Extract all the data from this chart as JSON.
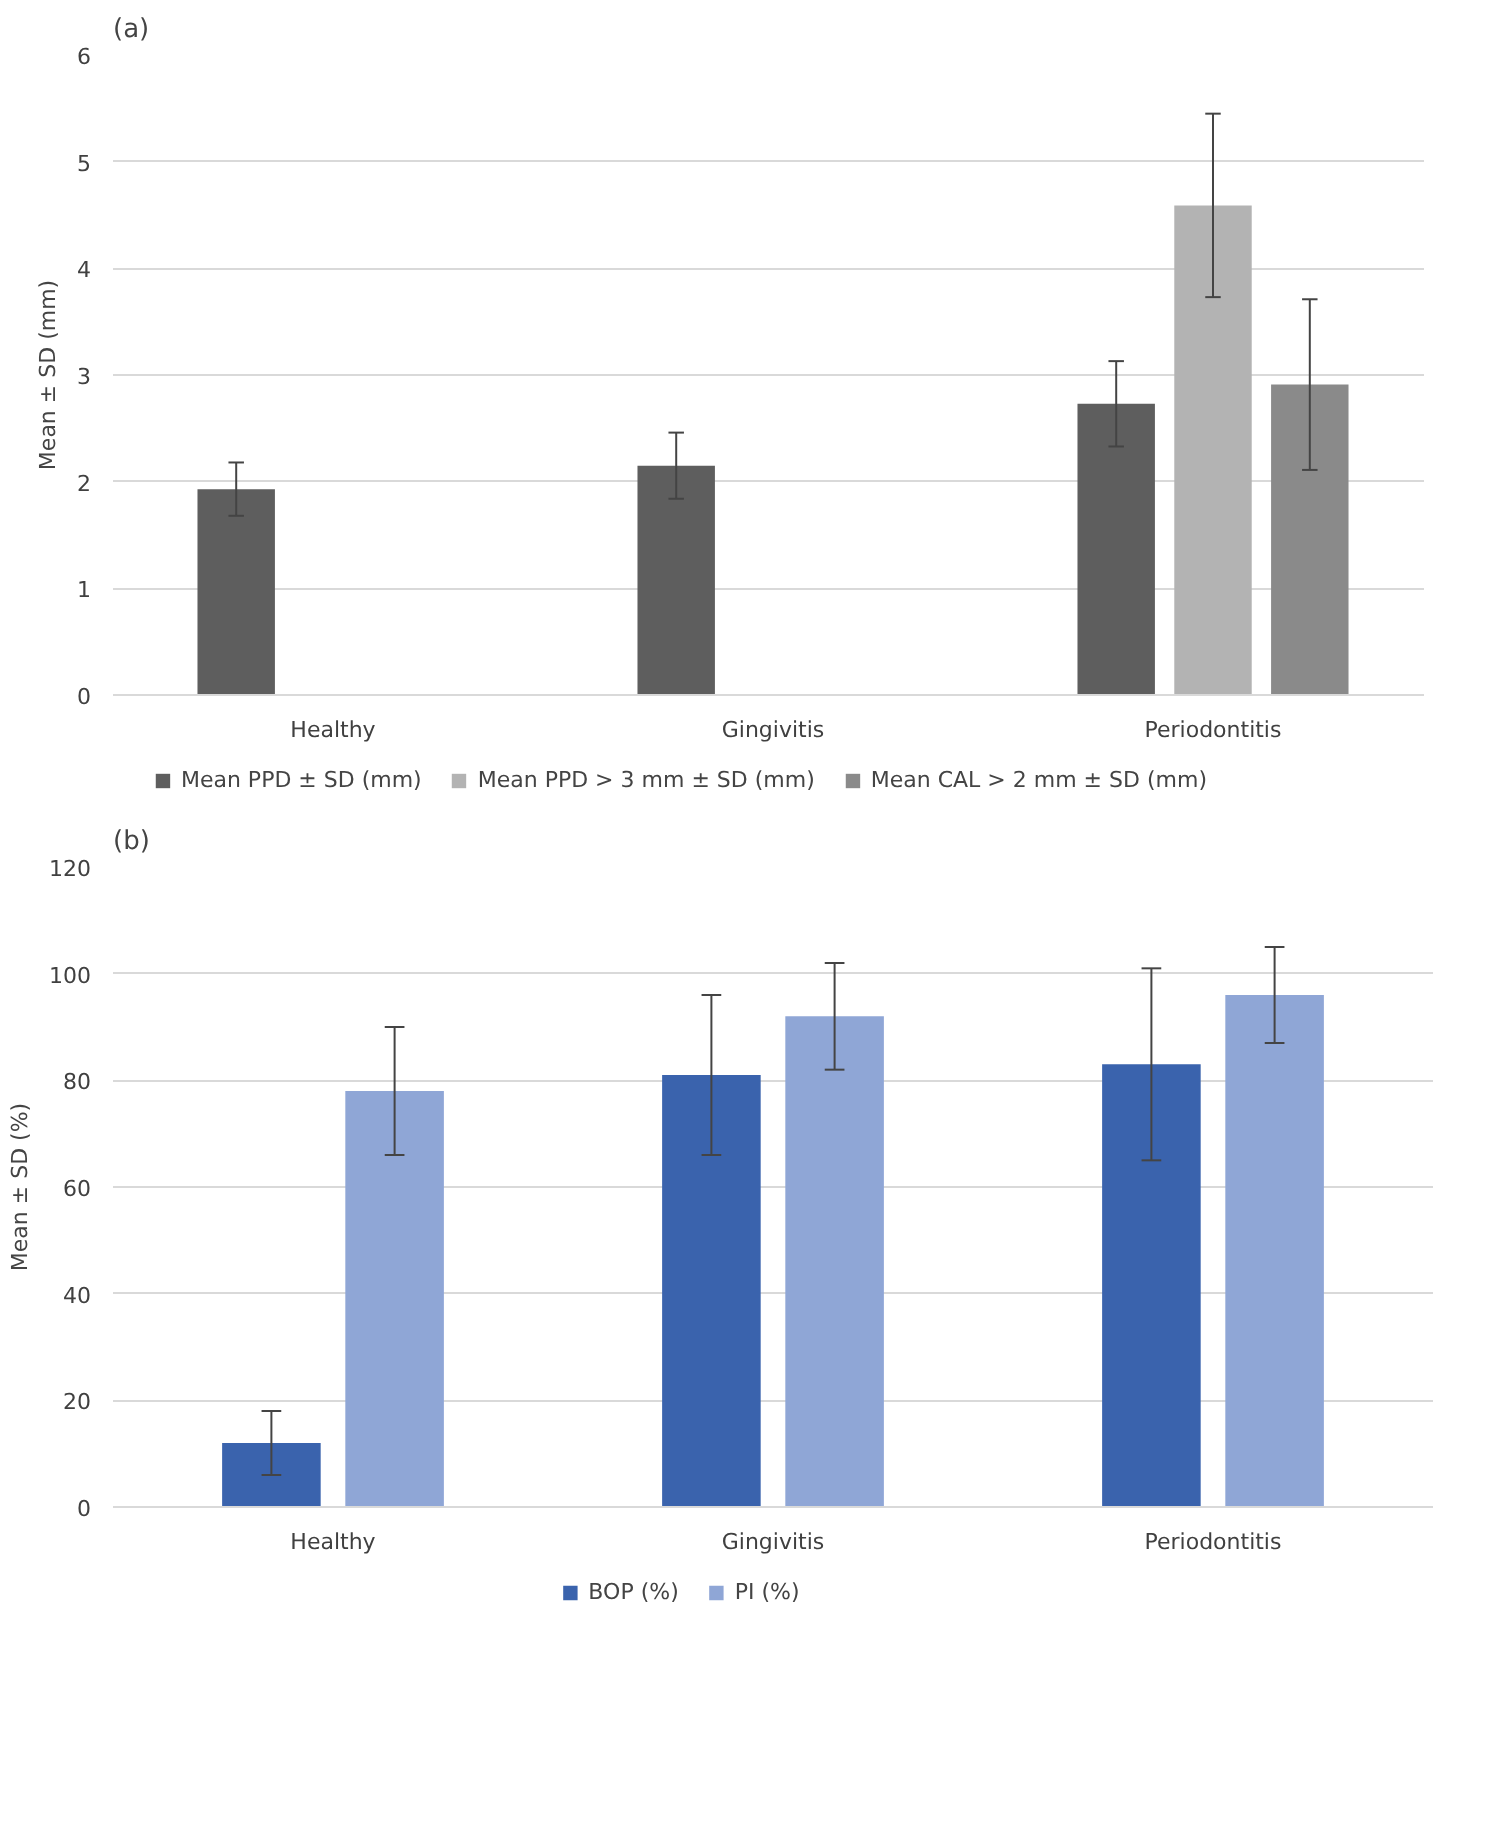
{
  "chart_data": [
    {
      "type": "bar",
      "title": "(a)",
      "ylabel": "Mean ± SD (mm)",
      "categories": [
        "Healthy",
        "Gingivitis",
        "Periodontitis"
      ],
      "series": [
        {
          "name": "Mean PPD ± SD (mm)",
          "color": "#5e5e5e",
          "values": [
            1.93,
            2.15,
            2.73
          ],
          "errors": [
            0.25,
            0.31,
            0.4
          ]
        },
        {
          "name": "Mean PPD > 3 mm ± SD (mm)",
          "color": "#b3b3b3",
          "values": [
            null,
            null,
            4.59
          ],
          "errors": [
            null,
            null,
            0.86
          ]
        },
        {
          "name": "Mean CAL > 2 mm ± SD (mm)",
          "color": "#8a8a8a",
          "values": [
            null,
            null,
            2.91
          ],
          "errors": [
            null,
            null,
            0.8
          ]
        }
      ],
      "ylim": [
        0,
        6
      ],
      "yticks": [
        0,
        1,
        2,
        3,
        4,
        5,
        6
      ],
      "grid": "y",
      "legend": "bottom"
    },
    {
      "type": "bar",
      "title": "(b)",
      "ylabel": "Mean ± SD (%)",
      "categories": [
        "Healthy",
        "Gingivitis",
        "Periodontitis"
      ],
      "series": [
        {
          "name": "BOP (%)",
          "color": "#3a63ad",
          "values": [
            12,
            81,
            83
          ],
          "errors": [
            6,
            15,
            18
          ]
        },
        {
          "name": "PI (%)",
          "color": "#8fa6d6",
          "values": [
            78,
            92,
            96
          ],
          "errors": [
            12,
            10,
            9
          ]
        }
      ],
      "ylim": [
        0,
        120
      ],
      "yticks": [
        0,
        20,
        40,
        60,
        80,
        100,
        120
      ],
      "grid": "y",
      "legend": "bottom"
    }
  ]
}
